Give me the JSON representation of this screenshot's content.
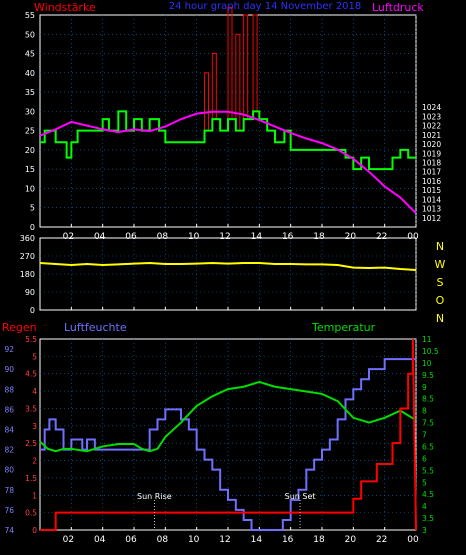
{
  "header": {
    "left_label": "Windstärke",
    "title": "24 hour graph day 14 November 2018",
    "right_label": "Luftdruck"
  },
  "x_ticks": [
    "02",
    "04",
    "06",
    "08",
    "10",
    "12",
    "14",
    "16",
    "18",
    "20",
    "22",
    "00"
  ],
  "x_tick_times": [
    2,
    4,
    6,
    8,
    10,
    12,
    14,
    16,
    18,
    20,
    22,
    24
  ],
  "colors": {
    "wind": "#00ff00",
    "gust": "#ff0000",
    "pressure": "#ff00ff",
    "direction": "#ffff00",
    "humidity": "#7070ff",
    "temperature": "#00dd00",
    "rain": "#ff0000",
    "frame": "#ffffff",
    "grid": "#0070c0",
    "title": "#3030ff"
  },
  "chart_data": [
    {
      "type": "line",
      "title": "24 hour graph day 14 November 2018",
      "x_unit": "hour of day",
      "xlim": [
        0,
        24
      ],
      "left_axis": {
        "label": "Windstärke",
        "ylim": [
          0,
          55
        ],
        "ticks": [
          "0",
          "5",
          "10",
          "15",
          "20",
          "25",
          "30",
          "35",
          "40",
          "45",
          "50",
          "55"
        ]
      },
      "right_axis": {
        "label": "Luftdruck",
        "ylim": [
          1011,
          1034
        ],
        "ticks": [
          "1012",
          "1013",
          "1014",
          "1015",
          "1016",
          "1017",
          "1018",
          "1019",
          "1020",
          "1021",
          "1022",
          "1023",
          "1024"
        ]
      },
      "grid": true,
      "series": [
        {
          "name": "Windstärke",
          "axis": "left",
          "style": "step",
          "x": [
            0,
            0.3,
            1.0,
            1.7,
            2.0,
            2.4,
            3.5,
            4.0,
            4.4,
            5.0,
            5.5,
            6.0,
            6.5,
            7.0,
            7.6,
            8.0,
            9.0,
            10.0,
            10.5,
            11.0,
            11.5,
            12.0,
            12.5,
            13.0,
            13.6,
            14.0,
            14.5,
            15.0,
            15.6,
            16.0,
            17.0,
            18.0,
            19.0,
            19.5,
            20.0,
            20.5,
            21.0,
            21.5,
            22.0,
            22.5,
            23.0,
            23.5,
            24.0
          ],
          "y": [
            22,
            25,
            22,
            18,
            22,
            25,
            25,
            28,
            25,
            30,
            25,
            28,
            25,
            28,
            25,
            22,
            22,
            22,
            25,
            28,
            25,
            28,
            25,
            28,
            30,
            28,
            25,
            22,
            25,
            20,
            20,
            20,
            20,
            18,
            15,
            18,
            15,
            15,
            15,
            18,
            20,
            18,
            18
          ]
        },
        {
          "name": "Böen",
          "axis": "left",
          "style": "bars",
          "x": [
            10.5,
            11.0,
            12.0,
            12.5,
            13.0,
            13.6
          ],
          "y": [
            40,
            45,
            57,
            50,
            55,
            55
          ]
        },
        {
          "name": "Luftdruck",
          "axis": "right",
          "style": "line",
          "x": [
            0,
            1,
            2,
            3,
            4,
            5,
            6,
            7,
            8,
            9,
            10,
            11,
            12,
            13,
            14,
            15,
            16,
            17,
            18,
            19,
            20,
            21,
            22,
            23,
            24
          ],
          "y": [
            1020.9,
            1021.6,
            1022.4,
            1022.0,
            1021.6,
            1021.3,
            1021.6,
            1021.4,
            1021.9,
            1022.7,
            1023.3,
            1023.5,
            1023.5,
            1023.2,
            1022.6,
            1021.9,
            1021.2,
            1020.6,
            1020.1,
            1019.4,
            1018.4,
            1017.0,
            1015.4,
            1014.2,
            1012.5
          ]
        }
      ]
    },
    {
      "type": "line",
      "x_unit": "hour of day",
      "xlim": [
        0,
        24
      ],
      "left_axis": {
        "ylim": [
          0,
          360
        ],
        "ticks": [
          "0",
          "90",
          "180",
          "270",
          "360"
        ]
      },
      "right_axis": {
        "ticks": [
          "N",
          "W",
          "S",
          "O",
          "N"
        ]
      },
      "grid": true,
      "series": [
        {
          "name": "Windrichtung",
          "axis": "left",
          "style": "line",
          "x": [
            0,
            1,
            2,
            3,
            4,
            5,
            6,
            7,
            8,
            9,
            10,
            11,
            12,
            13,
            14,
            15,
            16,
            17,
            18,
            19,
            20,
            21,
            22,
            23,
            24
          ],
          "y": [
            235,
            230,
            225,
            230,
            225,
            228,
            232,
            235,
            230,
            230,
            232,
            235,
            232,
            235,
            235,
            230,
            230,
            228,
            228,
            225,
            212,
            210,
            212,
            205,
            200
          ]
        }
      ]
    },
    {
      "type": "line",
      "x_unit": "hour of day",
      "xlim": [
        0,
        24
      ],
      "left_axis": {
        "ticks": [
          "0",
          "0.5",
          "1",
          "1.5",
          "2",
          "2.5",
          "3",
          "3.5",
          "4",
          "4.5",
          "5",
          "5.5"
        ],
        "ylim": [
          0,
          5.5
        ]
      },
      "humidity_axis": {
        "label": "Luftfeuchte",
        "ylim": [
          74,
          93
        ],
        "ticks": [
          "74",
          "76",
          "78",
          "80",
          "82",
          "84",
          "86",
          "88",
          "90",
          "92"
        ]
      },
      "right_axis": {
        "label": "Temperatur",
        "ylim": [
          3,
          11
        ],
        "ticks": [
          "3",
          "3.5",
          "4",
          "4.5",
          "5",
          "5.5",
          "6",
          "6.5",
          "7",
          "7.5",
          "8",
          "8.5",
          "9",
          "9.5",
          "10",
          "10.5",
          "11"
        ]
      },
      "rain_label": "Regen",
      "grid": true,
      "annotations": [
        {
          "text": "Sun Rise",
          "x": 7.3
        },
        {
          "text": "Sun Set",
          "x": 16.6
        }
      ],
      "series": [
        {
          "name": "Regen",
          "axis": "left",
          "style": "step",
          "x": [
            0,
            1.0,
            19.5,
            20.0,
            20.5,
            21.5,
            22.5,
            23.0,
            23.5,
            23.8,
            24
          ],
          "y": [
            0,
            0.5,
            0.5,
            0.9,
            1.4,
            1.9,
            2.5,
            3.5,
            4.5,
            5.5,
            0
          ]
        },
        {
          "name": "Luftfeuchte",
          "axis": "humidity",
          "style": "step",
          "x": [
            0,
            0.3,
            0.6,
            1.0,
            1.5,
            2.0,
            2.7,
            3.0,
            3.5,
            4.5,
            5.5,
            6.0,
            6.5,
            7.0,
            7.5,
            8.0,
            9.0,
            9.5,
            10.0,
            10.5,
            11.0,
            11.5,
            12.0,
            12.5,
            13.0,
            13.5,
            15.0,
            15.5,
            16.0,
            16.5,
            17.0,
            17.5,
            18.0,
            18.5,
            19.0,
            19.5,
            20.0,
            20.5,
            21.0,
            21.5,
            22.0,
            22.5,
            23.0,
            23.5,
            24.0
          ],
          "y": [
            82,
            84,
            85,
            84,
            82,
            83,
            82,
            83,
            82,
            82,
            82,
            82,
            82,
            84,
            85,
            86,
            85,
            84,
            82,
            81,
            80,
            78,
            77,
            76,
            75,
            74,
            74,
            75,
            77,
            78,
            80,
            81,
            82,
            83,
            85,
            87,
            88,
            89,
            90,
            90,
            91,
            91,
            91,
            91,
            91
          ]
        },
        {
          "name": "Temperatur",
          "axis": "right",
          "style": "line",
          "x": [
            0,
            0.5,
            1,
            1.5,
            2,
            3,
            4,
            5,
            6,
            6.5,
            7,
            7.5,
            8,
            9,
            10,
            11,
            12,
            13,
            14,
            14.5,
            15,
            16,
            17,
            18,
            19,
            20,
            21,
            22,
            23,
            23.5,
            24
          ],
          "y": [
            6.7,
            6.4,
            6.3,
            6.4,
            6.4,
            6.3,
            6.5,
            6.6,
            6.6,
            6.4,
            6.3,
            6.4,
            6.9,
            7.5,
            8.2,
            8.6,
            8.9,
            9.0,
            9.2,
            9.1,
            9.0,
            8.9,
            8.8,
            8.7,
            8.4,
            7.7,
            7.5,
            7.7,
            8.0,
            7.8,
            7.6
          ]
        }
      ]
    }
  ]
}
